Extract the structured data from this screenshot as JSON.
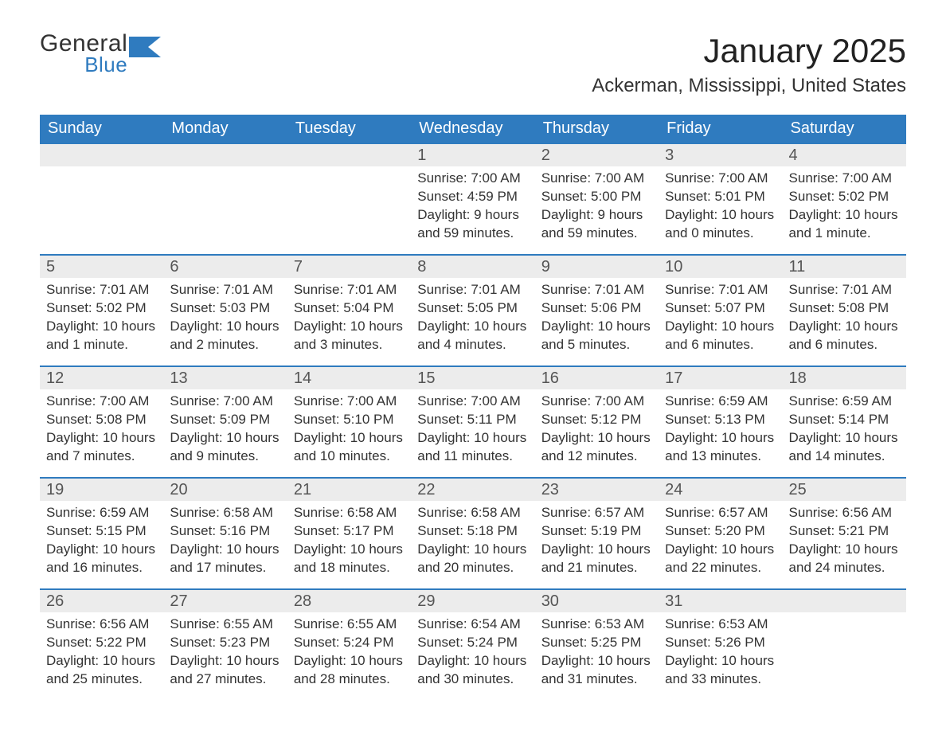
{
  "brand": {
    "general": "General",
    "blue": "Blue",
    "flag_color": "#2f7bbf"
  },
  "title": {
    "month": "January 2025",
    "location": "Ackerman, Mississippi, United States"
  },
  "colors": {
    "header_bg": "#2f7bbf",
    "header_text": "#ffffff",
    "daynum_bg": "#ececec",
    "daynum_border": "#2f7bbf",
    "body_text": "#333333",
    "page_bg": "#ffffff"
  },
  "fonts": {
    "title_size_pt": 42,
    "location_size_pt": 24,
    "header_size_pt": 20,
    "body_size_pt": 17
  },
  "weekdays": [
    "Sunday",
    "Monday",
    "Tuesday",
    "Wednesday",
    "Thursday",
    "Friday",
    "Saturday"
  ],
  "weeks": [
    [
      null,
      null,
      null,
      {
        "n": "1",
        "sunrise": "Sunrise: 7:00 AM",
        "sunset": "Sunset: 4:59 PM",
        "day1": "Daylight: 9 hours",
        "day2": "and 59 minutes."
      },
      {
        "n": "2",
        "sunrise": "Sunrise: 7:00 AM",
        "sunset": "Sunset: 5:00 PM",
        "day1": "Daylight: 9 hours",
        "day2": "and 59 minutes."
      },
      {
        "n": "3",
        "sunrise": "Sunrise: 7:00 AM",
        "sunset": "Sunset: 5:01 PM",
        "day1": "Daylight: 10 hours",
        "day2": "and 0 minutes."
      },
      {
        "n": "4",
        "sunrise": "Sunrise: 7:00 AM",
        "sunset": "Sunset: 5:02 PM",
        "day1": "Daylight: 10 hours",
        "day2": "and 1 minute."
      }
    ],
    [
      {
        "n": "5",
        "sunrise": "Sunrise: 7:01 AM",
        "sunset": "Sunset: 5:02 PM",
        "day1": "Daylight: 10 hours",
        "day2": "and 1 minute."
      },
      {
        "n": "6",
        "sunrise": "Sunrise: 7:01 AM",
        "sunset": "Sunset: 5:03 PM",
        "day1": "Daylight: 10 hours",
        "day2": "and 2 minutes."
      },
      {
        "n": "7",
        "sunrise": "Sunrise: 7:01 AM",
        "sunset": "Sunset: 5:04 PM",
        "day1": "Daylight: 10 hours",
        "day2": "and 3 minutes."
      },
      {
        "n": "8",
        "sunrise": "Sunrise: 7:01 AM",
        "sunset": "Sunset: 5:05 PM",
        "day1": "Daylight: 10 hours",
        "day2": "and 4 minutes."
      },
      {
        "n": "9",
        "sunrise": "Sunrise: 7:01 AM",
        "sunset": "Sunset: 5:06 PM",
        "day1": "Daylight: 10 hours",
        "day2": "and 5 minutes."
      },
      {
        "n": "10",
        "sunrise": "Sunrise: 7:01 AM",
        "sunset": "Sunset: 5:07 PM",
        "day1": "Daylight: 10 hours",
        "day2": "and 6 minutes."
      },
      {
        "n": "11",
        "sunrise": "Sunrise: 7:01 AM",
        "sunset": "Sunset: 5:08 PM",
        "day1": "Daylight: 10 hours",
        "day2": "and 6 minutes."
      }
    ],
    [
      {
        "n": "12",
        "sunrise": "Sunrise: 7:00 AM",
        "sunset": "Sunset: 5:08 PM",
        "day1": "Daylight: 10 hours",
        "day2": "and 7 minutes."
      },
      {
        "n": "13",
        "sunrise": "Sunrise: 7:00 AM",
        "sunset": "Sunset: 5:09 PM",
        "day1": "Daylight: 10 hours",
        "day2": "and 9 minutes."
      },
      {
        "n": "14",
        "sunrise": "Sunrise: 7:00 AM",
        "sunset": "Sunset: 5:10 PM",
        "day1": "Daylight: 10 hours",
        "day2": "and 10 minutes."
      },
      {
        "n": "15",
        "sunrise": "Sunrise: 7:00 AM",
        "sunset": "Sunset: 5:11 PM",
        "day1": "Daylight: 10 hours",
        "day2": "and 11 minutes."
      },
      {
        "n": "16",
        "sunrise": "Sunrise: 7:00 AM",
        "sunset": "Sunset: 5:12 PM",
        "day1": "Daylight: 10 hours",
        "day2": "and 12 minutes."
      },
      {
        "n": "17",
        "sunrise": "Sunrise: 6:59 AM",
        "sunset": "Sunset: 5:13 PM",
        "day1": "Daylight: 10 hours",
        "day2": "and 13 minutes."
      },
      {
        "n": "18",
        "sunrise": "Sunrise: 6:59 AM",
        "sunset": "Sunset: 5:14 PM",
        "day1": "Daylight: 10 hours",
        "day2": "and 14 minutes."
      }
    ],
    [
      {
        "n": "19",
        "sunrise": "Sunrise: 6:59 AM",
        "sunset": "Sunset: 5:15 PM",
        "day1": "Daylight: 10 hours",
        "day2": "and 16 minutes."
      },
      {
        "n": "20",
        "sunrise": "Sunrise: 6:58 AM",
        "sunset": "Sunset: 5:16 PM",
        "day1": "Daylight: 10 hours",
        "day2": "and 17 minutes."
      },
      {
        "n": "21",
        "sunrise": "Sunrise: 6:58 AM",
        "sunset": "Sunset: 5:17 PM",
        "day1": "Daylight: 10 hours",
        "day2": "and 18 minutes."
      },
      {
        "n": "22",
        "sunrise": "Sunrise: 6:58 AM",
        "sunset": "Sunset: 5:18 PM",
        "day1": "Daylight: 10 hours",
        "day2": "and 20 minutes."
      },
      {
        "n": "23",
        "sunrise": "Sunrise: 6:57 AM",
        "sunset": "Sunset: 5:19 PM",
        "day1": "Daylight: 10 hours",
        "day2": "and 21 minutes."
      },
      {
        "n": "24",
        "sunrise": "Sunrise: 6:57 AM",
        "sunset": "Sunset: 5:20 PM",
        "day1": "Daylight: 10 hours",
        "day2": "and 22 minutes."
      },
      {
        "n": "25",
        "sunrise": "Sunrise: 6:56 AM",
        "sunset": "Sunset: 5:21 PM",
        "day1": "Daylight: 10 hours",
        "day2": "and 24 minutes."
      }
    ],
    [
      {
        "n": "26",
        "sunrise": "Sunrise: 6:56 AM",
        "sunset": "Sunset: 5:22 PM",
        "day1": "Daylight: 10 hours",
        "day2": "and 25 minutes."
      },
      {
        "n": "27",
        "sunrise": "Sunrise: 6:55 AM",
        "sunset": "Sunset: 5:23 PM",
        "day1": "Daylight: 10 hours",
        "day2": "and 27 minutes."
      },
      {
        "n": "28",
        "sunrise": "Sunrise: 6:55 AM",
        "sunset": "Sunset: 5:24 PM",
        "day1": "Daylight: 10 hours",
        "day2": "and 28 minutes."
      },
      {
        "n": "29",
        "sunrise": "Sunrise: 6:54 AM",
        "sunset": "Sunset: 5:24 PM",
        "day1": "Daylight: 10 hours",
        "day2": "and 30 minutes."
      },
      {
        "n": "30",
        "sunrise": "Sunrise: 6:53 AM",
        "sunset": "Sunset: 5:25 PM",
        "day1": "Daylight: 10 hours",
        "day2": "and 31 minutes."
      },
      {
        "n": "31",
        "sunrise": "Sunrise: 6:53 AM",
        "sunset": "Sunset: 5:26 PM",
        "day1": "Daylight: 10 hours",
        "day2": "and 33 minutes."
      },
      null
    ]
  ]
}
